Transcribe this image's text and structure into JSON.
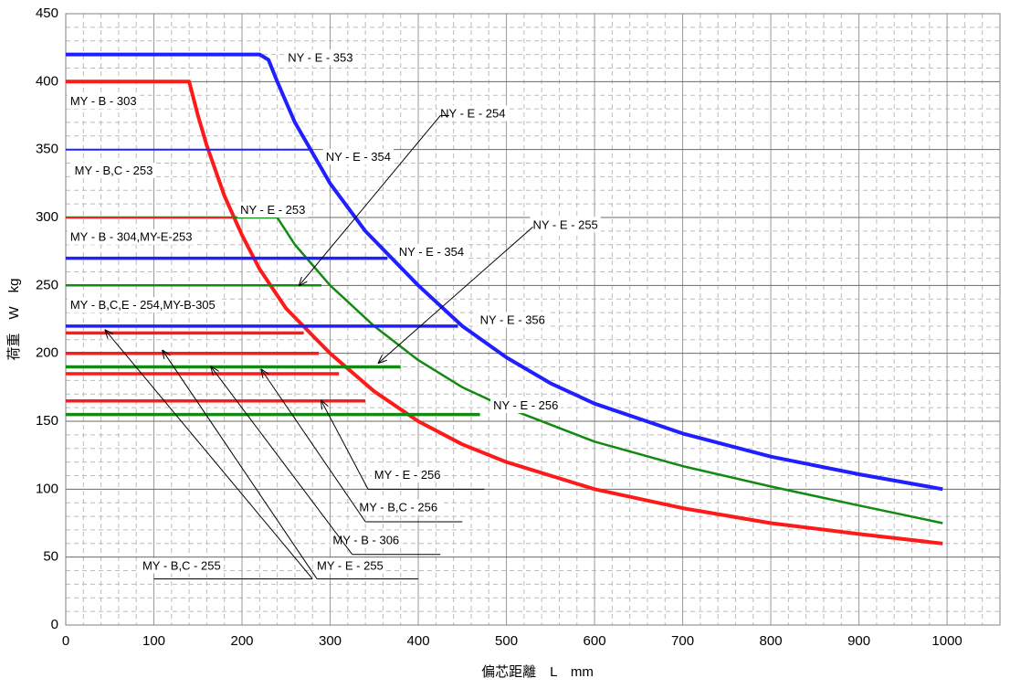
{
  "chart_data": {
    "type": "line",
    "title": "",
    "xlabel": "偏芯距離　L　mm",
    "ylabel": "荷重　W　kg",
    "xlim": [
      0,
      1060
    ],
    "ylim": [
      0,
      450
    ],
    "x_ticks": [
      0,
      100,
      200,
      300,
      400,
      500,
      600,
      700,
      800,
      900,
      1000
    ],
    "y_ticks": [
      0,
      50,
      100,
      150,
      200,
      250,
      300,
      350,
      400,
      450
    ],
    "grid": {
      "major": true,
      "minor_dashed": true
    },
    "legend": "none",
    "colors": {
      "blue": "#1f1fff",
      "red": "#ff1a1a",
      "green": "#138a13",
      "annotation": "#000000"
    },
    "series": [
      {
        "id": "blue-420",
        "color": "blue",
        "width": 4,
        "points": [
          [
            0,
            420
          ],
          [
            220,
            420
          ],
          [
            230,
            416
          ],
          [
            240,
            400
          ],
          [
            260,
            370
          ],
          [
            300,
            325
          ],
          [
            340,
            290
          ],
          [
            400,
            250
          ],
          [
            450,
            220
          ],
          [
            500,
            197
          ],
          [
            550,
            178
          ],
          [
            600,
            163
          ],
          [
            700,
            141
          ],
          [
            800,
            124
          ],
          [
            900,
            111
          ],
          [
            995,
            100
          ]
        ]
      },
      {
        "id": "red-400",
        "color": "red",
        "width": 4,
        "points": [
          [
            0,
            400
          ],
          [
            140,
            400
          ],
          [
            150,
            375
          ],
          [
            160,
            353
          ],
          [
            180,
            316
          ],
          [
            200,
            287
          ],
          [
            220,
            262
          ],
          [
            250,
            233
          ],
          [
            300,
            200
          ],
          [
            350,
            172
          ],
          [
            400,
            150
          ],
          [
            450,
            133
          ],
          [
            500,
            120
          ],
          [
            600,
            100
          ],
          [
            700,
            86
          ],
          [
            800,
            75
          ],
          [
            900,
            67
          ],
          [
            995,
            60
          ]
        ]
      },
      {
        "id": "green-300",
        "color": "green",
        "width": 2.5,
        "points": [
          [
            0,
            300
          ],
          [
            240,
            300
          ],
          [
            260,
            280
          ],
          [
            300,
            250
          ],
          [
            350,
            220
          ],
          [
            400,
            195
          ],
          [
            450,
            175
          ],
          [
            500,
            160
          ],
          [
            600,
            135
          ],
          [
            700,
            117
          ],
          [
            800,
            102
          ],
          [
            900,
            88
          ],
          [
            995,
            75
          ]
        ]
      },
      {
        "id": "blue-350",
        "color": "blue",
        "width": 2,
        "points": [
          [
            0,
            350
          ],
          [
            280,
            350
          ]
        ]
      },
      {
        "id": "blue-270",
        "color": "blue",
        "width": 3.5,
        "points": [
          [
            0,
            270
          ],
          [
            365,
            270
          ]
        ]
      },
      {
        "id": "blue-220",
        "color": "blue",
        "width": 3.5,
        "points": [
          [
            0,
            220
          ],
          [
            445,
            220
          ]
        ]
      },
      {
        "id": "red-300",
        "color": "red",
        "width": 2,
        "points": [
          [
            0,
            300
          ],
          [
            190,
            300
          ]
        ]
      },
      {
        "id": "red-250",
        "color": "red",
        "width": 2,
        "points": [
          [
            0,
            250
          ],
          [
            230,
            250
          ]
        ]
      },
      {
        "id": "red-215",
        "color": "red",
        "width": 3.5,
        "points": [
          [
            0,
            215
          ],
          [
            270,
            215
          ]
        ]
      },
      {
        "id": "red-200",
        "color": "red",
        "width": 3.5,
        "points": [
          [
            0,
            200
          ],
          [
            287,
            200
          ]
        ]
      },
      {
        "id": "red-185",
        "color": "red",
        "width": 3.5,
        "points": [
          [
            0,
            185
          ],
          [
            310,
            185
          ]
        ]
      },
      {
        "id": "red-165",
        "color": "red",
        "width": 3.5,
        "points": [
          [
            0,
            165
          ],
          [
            340,
            165
          ]
        ]
      },
      {
        "id": "green-250",
        "color": "green",
        "width": 2.5,
        "points": [
          [
            0,
            250
          ],
          [
            290,
            250
          ]
        ]
      },
      {
        "id": "green-190",
        "color": "green",
        "width": 3.5,
        "points": [
          [
            0,
            190
          ],
          [
            380,
            190
          ]
        ]
      },
      {
        "id": "green-155",
        "color": "green",
        "width": 3.5,
        "points": [
          [
            0,
            155
          ],
          [
            470,
            155
          ]
        ]
      }
    ],
    "annotations": [
      {
        "text": "NY - E - 353",
        "x": 252,
        "y": 417,
        "anchor": "start"
      },
      {
        "text": "MY - B - 303",
        "x": 5,
        "y": 385,
        "anchor": "start"
      },
      {
        "text": "NY - E - 254",
        "x": 425,
        "y": 376,
        "anchor": "start"
      },
      {
        "text": "NY - E - 354",
        "x": 295,
        "y": 344,
        "anchor": "start"
      },
      {
        "text": "MY - B,C - 253",
        "x": 10,
        "y": 334,
        "anchor": "start"
      },
      {
        "text": "NY - E - 253",
        "x": 198,
        "y": 305,
        "anchor": "start"
      },
      {
        "text": "NY - E - 255",
        "x": 530,
        "y": 294,
        "anchor": "start"
      },
      {
        "text": "MY - B - 304,MY-E-253",
        "x": 5,
        "y": 285,
        "anchor": "start"
      },
      {
        "text": "NY - E - 354",
        "x": 378,
        "y": 274,
        "anchor": "start"
      },
      {
        "text": "MY - B,C,E - 254,MY-B-305",
        "x": 5,
        "y": 235,
        "anchor": "start"
      },
      {
        "text": "NY - E - 356",
        "x": 470,
        "y": 224,
        "anchor": "start"
      },
      {
        "text": "NY - E - 256",
        "x": 485,
        "y": 161,
        "anchor": "start"
      },
      {
        "text": "MY - E - 256",
        "x": 350,
        "y": 110,
        "anchor": "start"
      },
      {
        "text": "MY - B,C - 256",
        "x": 333,
        "y": 86,
        "anchor": "start"
      },
      {
        "text": "MY - B - 306",
        "x": 303,
        "y": 62,
        "anchor": "start"
      },
      {
        "text": "MY - B,C - 255",
        "x": 87,
        "y": 43,
        "anchor": "start"
      },
      {
        "text": "MY - E - 255",
        "x": 285,
        "y": 43,
        "anchor": "start"
      }
    ],
    "leaders": [
      {
        "from": [
          425,
          375
        ],
        "to": [
          265,
          250
        ],
        "arrow": true
      },
      {
        "from": [
          425,
          375
        ],
        "to": [
          435,
          375
        ],
        "arrow": false
      },
      {
        "from": [
          530,
          293
        ],
        "to": [
          355,
          193
        ],
        "arrow": true
      },
      {
        "from": [
          280,
          34
        ],
        "to": [
          45,
          217
        ],
        "arrow": true
      },
      {
        "from": [
          280,
          34
        ],
        "to": [
          100,
          34
        ],
        "arrow": false
      },
      {
        "from": [
          285,
          34
        ],
        "to": [
          110,
          202
        ],
        "arrow": true
      },
      {
        "from": [
          285,
          34
        ],
        "to": [
          400,
          34
        ],
        "arrow": false
      },
      {
        "from": [
          325,
          52
        ],
        "to": [
          165,
          190
        ],
        "arrow": true
      },
      {
        "from": [
          325,
          52
        ],
        "to": [
          425,
          52
        ],
        "arrow": false
      },
      {
        "from": [
          340,
          76
        ],
        "to": [
          222,
          188
        ],
        "arrow": true
      },
      {
        "from": [
          340,
          76
        ],
        "to": [
          450,
          76
        ],
        "arrow": false
      },
      {
        "from": [
          343,
          100
        ],
        "to": [
          290,
          165
        ],
        "arrow": true
      },
      {
        "from": [
          343,
          100
        ],
        "to": [
          475,
          100
        ],
        "arrow": false
      }
    ]
  }
}
